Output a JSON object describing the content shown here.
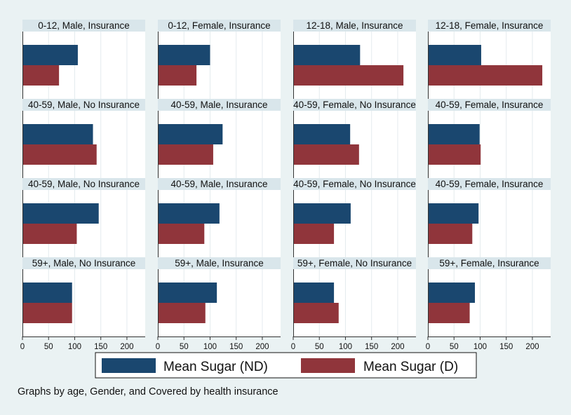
{
  "chart_data": {
    "type": "bar",
    "orientation": "horizontal",
    "xlim": [
      0,
      235
    ],
    "xticks": [
      "0",
      "50",
      "100",
      "150",
      "200"
    ],
    "xtick_values": [
      0,
      50,
      100,
      150,
      200
    ],
    "grid": true,
    "legend_position": "bottom",
    "series": [
      {
        "name": "Mean Sugar (ND)",
        "color": "#1a476f"
      },
      {
        "name": "Mean Sugar (D)",
        "color": "#90353b"
      }
    ],
    "panels": [
      {
        "title": "0-12, Male, Insurance",
        "values": [
          106,
          70
        ]
      },
      {
        "title": "0-12, Female, Insurance",
        "values": [
          100,
          74
        ]
      },
      {
        "title": "12-18, Male, Insurance",
        "values": [
          128,
          211
        ]
      },
      {
        "title": "12-18, Female, Insurance",
        "values": [
          102,
          219
        ]
      },
      {
        "title": "40-59, Male, No Insurance",
        "values": [
          135,
          142
        ]
      },
      {
        "title": "40-59, Male, Insurance",
        "values": [
          124,
          106
        ]
      },
      {
        "title": "40-59, Female, No Insurance",
        "values": [
          109,
          126
        ]
      },
      {
        "title": "40-59, Female, Insurance",
        "values": [
          99,
          101
        ]
      },
      {
        "title": "40-59, Male, No Insurance",
        "values": [
          146,
          104
        ]
      },
      {
        "title": "40-59, Male, Insurance",
        "values": [
          118,
          89
        ]
      },
      {
        "title": "40-59, Female, No Insurance",
        "values": [
          110,
          78
        ]
      },
      {
        "title": "40-59, Female, Insurance",
        "values": [
          97,
          85
        ]
      },
      {
        "title": "59+, Male, No Insurance",
        "values": [
          95,
          95
        ]
      },
      {
        "title": "59+, Male, Insurance",
        "values": [
          113,
          91
        ]
      },
      {
        "title": "59+, Female, No Insurance",
        "values": [
          78,
          87
        ]
      },
      {
        "title": "59+, Female, Insurance",
        "values": [
          90,
          80
        ]
      }
    ]
  },
  "note": "Graphs by age, Gender, and Covered by health insurance"
}
